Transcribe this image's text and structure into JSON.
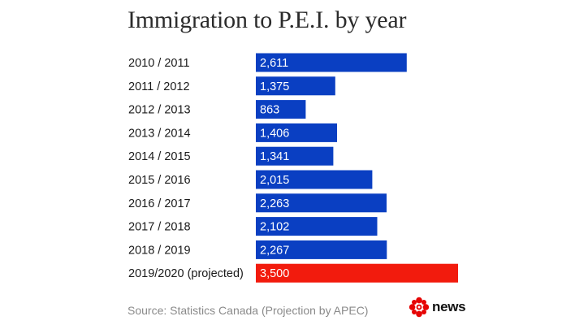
{
  "chart_data": {
    "type": "bar",
    "orientation": "horizontal",
    "title": "Immigration to P.E.I. by year",
    "categories": [
      "2010 / 2011",
      "2011 / 2012",
      "2012 / 2013",
      "2013 / 2014",
      "2014 / 2015",
      "2015 / 2016",
      "2016 / 2017",
      "2017 / 2018",
      "2018 / 2019",
      "2019/2020 (projected)"
    ],
    "values": [
      2611,
      1375,
      863,
      1406,
      1341,
      2015,
      2263,
      2102,
      2267,
      3500
    ],
    "value_labels": [
      "2,611",
      "1,375",
      "863",
      "1,406",
      "1,341",
      "2,015",
      "2,263",
      "2,102",
      "2,267",
      "3,500"
    ],
    "projected": [
      false,
      false,
      false,
      false,
      false,
      false,
      false,
      false,
      false,
      true
    ],
    "xlim": [
      0,
      3500
    ],
    "grid": false,
    "colors": {
      "actual": "#0a3fc2",
      "projected": "#f21b0d",
      "label_text": "#ffffff",
      "category_text": "#1a1a1a"
    }
  },
  "footer": {
    "source": "Source: Statistics Canada (Projection by APEC)",
    "brand_text": "news",
    "brand_icon": "cbc-gem-icon"
  }
}
